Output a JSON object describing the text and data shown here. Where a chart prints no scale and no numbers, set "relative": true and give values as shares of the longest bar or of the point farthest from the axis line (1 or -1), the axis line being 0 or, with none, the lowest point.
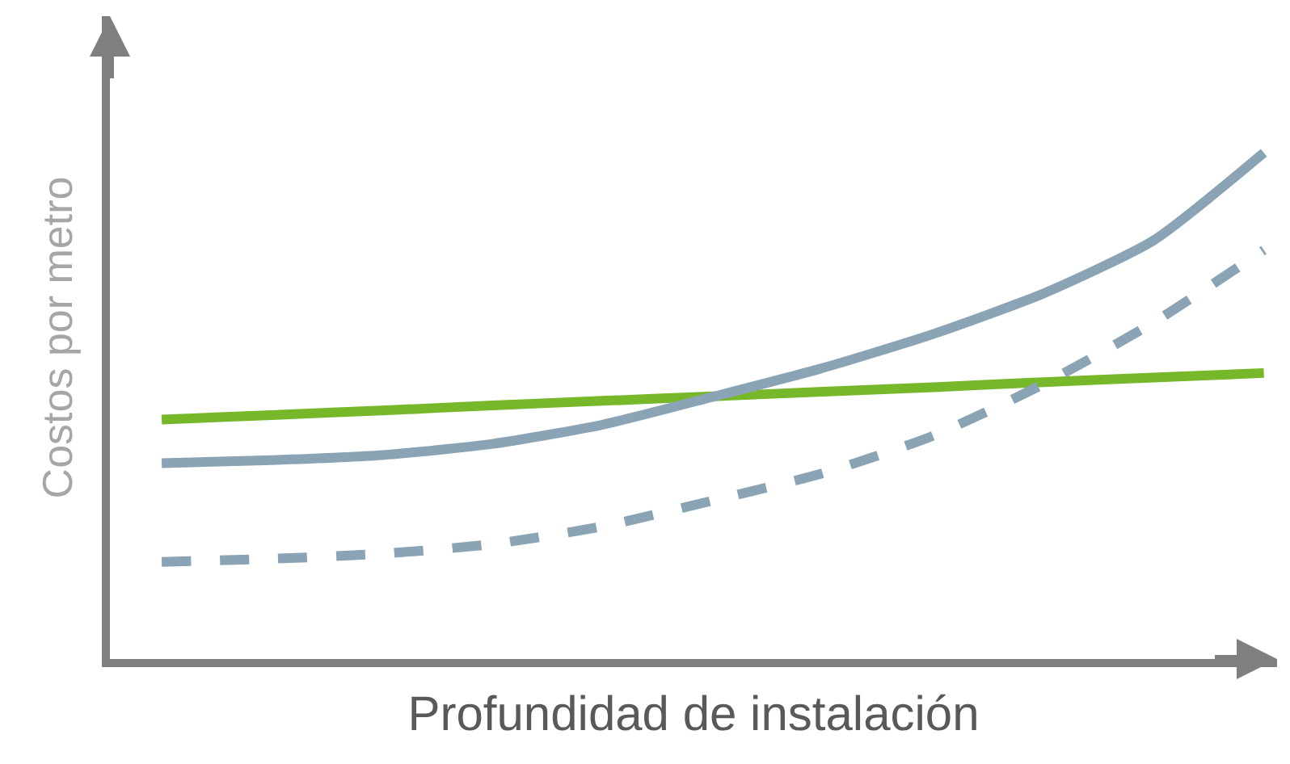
{
  "chart_data": {
    "type": "line",
    "relative": true,
    "xlabel": "Profundidad de instalación",
    "ylabel": "Costos por metro",
    "categories": [
      null,
      null,
      null,
      null,
      null,
      null,
      null,
      null,
      null,
      null,
      null
    ],
    "series": [
      {
        "color": "#76b82a",
        "line_style": "solid",
        "values": [
          0.473,
          0.482,
          0.491,
          0.501,
          0.51,
          0.519,
          0.528,
          0.537,
          0.547,
          0.556,
          0.565
        ]
      },
      {
        "color": "#8aa3b5",
        "line_style": "solid",
        "values": [
          0.387,
          0.393,
          0.403,
          0.425,
          0.463,
          0.518,
          0.575,
          0.642,
          0.722,
          0.827,
          1
        ]
      },
      {
        "color": "#8aa3b5",
        "line_style": "dashed",
        "values": [
          0.192,
          0.198,
          0.208,
          0.227,
          0.262,
          0.313,
          0.367,
          0.441,
          0.543,
          0.665,
          0.808
        ]
      }
    ]
  }
}
